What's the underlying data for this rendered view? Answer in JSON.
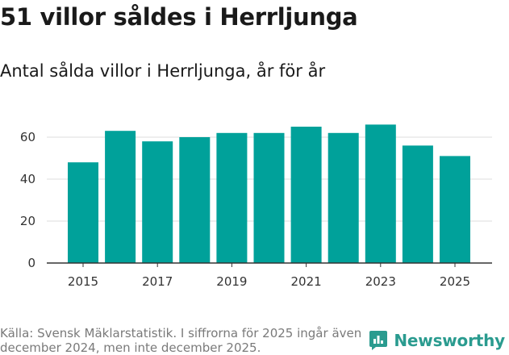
{
  "header": {
    "title": "51 villor såldes i Herrljunga",
    "subtitle": "Antal sålda villor i Herrljunga, år för år"
  },
  "footer": {
    "source": "Källa: Svensk Mäklarstatistik. I siffrorna för 2025 ingår även december 2024, men inte december 2025.",
    "brand": "Newsworthy",
    "brand_icon": "newsworthy-logo-icon"
  },
  "colors": {
    "bar": "#00a19a",
    "grid": "#dddddd",
    "axis": "#333333",
    "brand": "#2a9b8f"
  },
  "chart_data": {
    "type": "bar",
    "categories": [
      2015,
      2016,
      2017,
      2018,
      2019,
      2020,
      2021,
      2022,
      2023,
      2024,
      2025
    ],
    "values": [
      48,
      63,
      58,
      60,
      62,
      62,
      65,
      62,
      66,
      56,
      51
    ],
    "x_tick_labels": [
      "2015",
      "2017",
      "2019",
      "2021",
      "2023",
      "2025"
    ],
    "y_ticks": [
      0,
      20,
      40,
      60
    ],
    "ylim": [
      0,
      70
    ],
    "title": "51 villor såldes i Herrljunga",
    "subtitle": "Antal sålda villor i Herrljunga, år för år",
    "xlabel": "",
    "ylabel": "",
    "grid": true,
    "legend": "none"
  }
}
